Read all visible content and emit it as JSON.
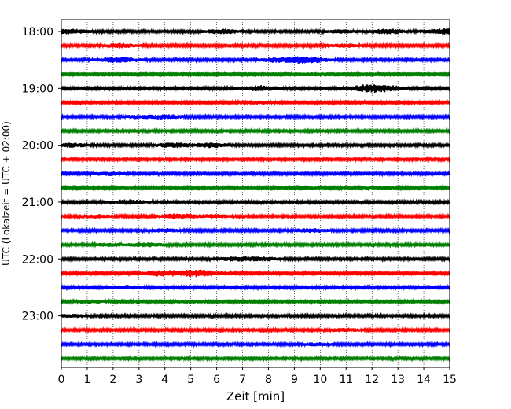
{
  "chart_data": {
    "type": "line",
    "title": "",
    "xlabel": "Zeit  [min]",
    "ylabel": "UTC (Lokalzeit = UTC + 02:00)",
    "xlim": [
      0,
      15
    ],
    "x_ticks": [
      "0",
      "1",
      "2",
      "3",
      "4",
      "5",
      "6",
      "7",
      "8",
      "9",
      "10",
      "11",
      "12",
      "13",
      "14",
      "15"
    ],
    "y_ticks": [
      "18:00",
      "19:00",
      "20:00",
      "21:00",
      "22:00",
      "23:00"
    ],
    "row_start": "18:00",
    "row_interval_min": 15,
    "row_count": 24,
    "row_colors": [
      "#000000",
      "#ff0000",
      "#0000ff",
      "#008000"
    ],
    "grid": "vertical dotted",
    "series_type": "seismic helicorder trace",
    "bursts": [
      {
        "row": 0,
        "x": 0.35,
        "a": 2.2
      },
      {
        "row": 0,
        "x": 6.2,
        "a": 2.0
      },
      {
        "row": 0,
        "x": 10.8,
        "a": 1.5
      },
      {
        "row": 0,
        "x": 12.6,
        "a": 2.3
      },
      {
        "row": 0,
        "x": 14.8,
        "a": 2.8
      },
      {
        "row": 1,
        "x": 2.3,
        "a": 1.9
      },
      {
        "row": 1,
        "x": 11.0,
        "a": 1.4
      },
      {
        "row": 2,
        "x": 2.2,
        "a": 2.6
      },
      {
        "row": 2,
        "x": 9.4,
        "a": 3.3
      },
      {
        "row": 2,
        "x": 8.2,
        "a": 1.6
      },
      {
        "row": 3,
        "x": 9.5,
        "a": 1.2
      },
      {
        "row": 4,
        "x": 7.6,
        "a": 2.6
      },
      {
        "row": 4,
        "x": 11.8,
        "a": 3.2
      },
      {
        "row": 4,
        "x": 12.6,
        "a": 2.2
      },
      {
        "row": 5,
        "x": 7.8,
        "a": 1.2
      },
      {
        "row": 6,
        "x": 4.1,
        "a": 1.8
      },
      {
        "row": 6,
        "x": 3.0,
        "a": 1.5
      },
      {
        "row": 8,
        "x": 0.4,
        "a": 1.8
      },
      {
        "row": 8,
        "x": 4.4,
        "a": 2.2
      },
      {
        "row": 8,
        "x": 5.8,
        "a": 1.9
      },
      {
        "row": 10,
        "x": 1.8,
        "a": 1.6
      },
      {
        "row": 11,
        "x": 9.1,
        "a": 2.2
      },
      {
        "row": 11,
        "x": 12.3,
        "a": 1.6
      },
      {
        "row": 12,
        "x": 2.6,
        "a": 2.3
      },
      {
        "row": 13,
        "x": 1.3,
        "a": 1.5
      },
      {
        "row": 13,
        "x": 4.5,
        "a": 2.2
      },
      {
        "row": 13,
        "x": 5.9,
        "a": 1.7
      },
      {
        "row": 14,
        "x": 4.1,
        "a": 1.6
      },
      {
        "row": 14,
        "x": 9.6,
        "a": 1.9
      },
      {
        "row": 15,
        "x": 3.3,
        "a": 1.8
      },
      {
        "row": 15,
        "x": 1.9,
        "a": 1.4
      },
      {
        "row": 16,
        "x": 6.8,
        "a": 2.0
      },
      {
        "row": 16,
        "x": 7.8,
        "a": 1.6
      },
      {
        "row": 17,
        "x": 3.8,
        "a": 2.3
      },
      {
        "row": 17,
        "x": 5.2,
        "a": 3.4
      },
      {
        "row": 18,
        "x": 2.5,
        "a": 1.8
      },
      {
        "row": 19,
        "x": 1.1,
        "a": 1.4
      },
      {
        "row": 19,
        "x": 5.0,
        "a": 1.3
      },
      {
        "row": 20,
        "x": 0.4,
        "a": 1.6
      },
      {
        "row": 21,
        "x": 11.0,
        "a": 1.6
      },
      {
        "row": 22,
        "x": 9.8,
        "a": 1.2
      }
    ]
  }
}
